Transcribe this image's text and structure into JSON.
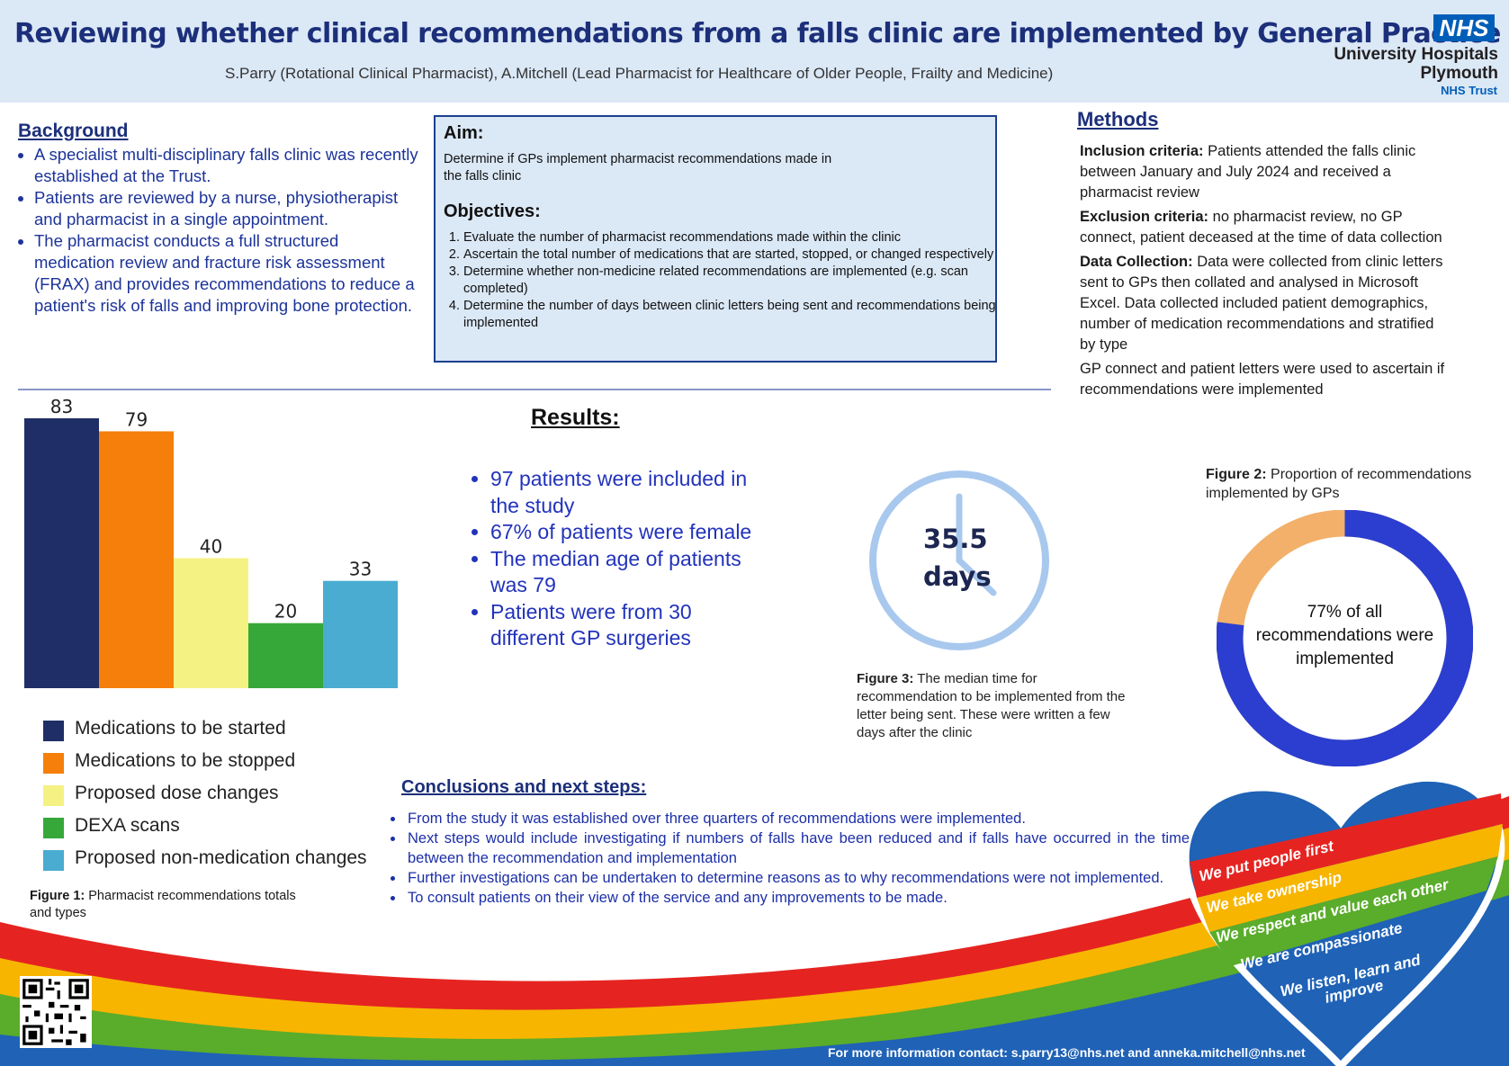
{
  "header": {
    "title": "Reviewing whether clinical recommendations from a falls clinic are implemented by General Practice",
    "authors": "S.Parry (Rotational Clinical Pharmacist), A.Mitchell (Lead Pharmacist for Healthcare of Older People, Frailty and Medicine)",
    "logo_badge": "NHS",
    "org_name_line1": "University Hospitals",
    "org_name_line2": "Plymouth",
    "org_trust": "NHS Trust",
    "brand_color": "#005eb8"
  },
  "background": {
    "heading": "Background",
    "items": [
      "A specialist multi-disciplinary falls clinic was recently established at the Trust.",
      "Patients are reviewed by a nurse, physiotherapist and pharmacist in a single appointment.",
      "The pharmacist conducts a full structured medication review and fracture risk assessment (FRAX) and provides recommendations to reduce a patient's risk of falls and improving bone protection."
    ]
  },
  "aim": {
    "heading": "Aim:",
    "text": "Determine if GPs implement pharmacist recommendations made in the falls clinic",
    "objectives_heading": "Objectives:",
    "objectives": [
      "Evaluate the number of pharmacist recommendations made within the clinic",
      "Ascertain the total number of medications that are started, stopped, or changed respectively",
      "Determine whether non-medicine related recommendations are implemented (e.g. scan completed)",
      "Determine the number of days between clinic letters being sent and recommendations being implemented"
    ]
  },
  "methods": {
    "heading": "Methods",
    "inclusion_label": "Inclusion criteria:",
    "inclusion_text": "Patients attended the falls clinic between January and July 2024 and received a pharmacist review",
    "exclusion_label": "Exclusion criteria:",
    "exclusion_text": "no pharmacist review, no GP connect, patient deceased at the time of data collection",
    "data_label": "Data Collection:",
    "data_text": "Data were collected from clinic letters sent to GPs then collated and analysed in Microsoft Excel. Data collected included patient demographics, number of medication recommendations and stratified by type",
    "gp_text": "GP connect and patient letters were used to ascertain if recommendations were implemented"
  },
  "chart_data": {
    "type": "bar",
    "categories": [
      "Medications to be started",
      "Medications to be stopped",
      "Proposed dose changes",
      "DEXA scans",
      "Proposed non-medication changes"
    ],
    "values": [
      83,
      79,
      40,
      20,
      33
    ],
    "colors": [
      "#1f2e66",
      "#f57f0a",
      "#f5f284",
      "#36a83a",
      "#4aacd0"
    ],
    "legend": "below",
    "ylim": [
      0,
      83
    ]
  },
  "figure1": {
    "label": "Figure 1:",
    "text": "Pharmacist recommendations totals and types"
  },
  "results": {
    "heading": "Results:",
    "items": [
      "97 patients were included in the study",
      "67% of patients were female",
      "The median age of patients was 79",
      "Patients were from 30 different GP surgeries"
    ]
  },
  "clock": {
    "value": "35.5",
    "unit": "days",
    "color": "#a8c8ee"
  },
  "figure3": {
    "label": "Figure 3:",
    "text": "The median time for recommendation to be implemented from the letter being sent. These were written a few days after the clinic"
  },
  "figure2": {
    "label": "Figure 2:",
    "text": "Proportion of recommendations implemented by GPs"
  },
  "donut": {
    "implemented_fraction": 0.77,
    "text": "77% of all recommendations were implemented",
    "colors": {
      "implemented": "#2b3ecf",
      "not_implemented": "#f2b06a"
    }
  },
  "conclusions": {
    "heading": "Conclusions and next steps:",
    "items": [
      "From the study it was established over  three quarters of recommendations were implemented.",
      "Next steps would include investigating if numbers of falls have been reduced and if falls have occurred in the time between the recommendation and implementation",
      "Further investigations can be undertaken to determine reasons as to why recommendations were not implemented.",
      "To consult patients on their view of the service and any improvements to be made."
    ]
  },
  "values_heart": [
    "We put people first",
    "We take ownership",
    "We respect and value each other",
    "We are compassionate",
    "We listen, learn and improve"
  ],
  "contact": "For more information contact: s.parry13@nhs.net and anneka.mitchell@nhs.net"
}
